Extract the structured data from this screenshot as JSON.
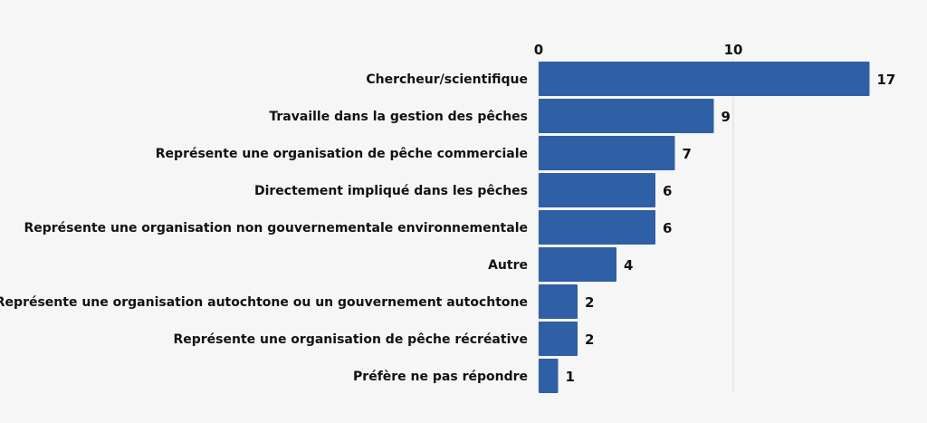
{
  "chart_data": {
    "type": "bar",
    "orientation": "horizontal",
    "categories": [
      "Chercheur/scientifique",
      "Travaille dans la gestion des pêches",
      "Représente une organisation de pêche commerciale",
      "Directement impliqué dans les pêches",
      "Représente une organisation non gouvernementale environnementale",
      "Autre",
      "Représente une organisation autochtone ou un gouvernement autochtone",
      "Représente une organisation de pêche récréative",
      "Préfère ne pas répondre"
    ],
    "values": [
      17,
      9,
      7,
      6,
      6,
      4,
      2,
      2,
      1
    ],
    "xticks": [
      0,
      10
    ],
    "xlim": [
      0,
      17
    ],
    "xaxis_position": "top",
    "grid": true,
    "data_labels": true,
    "bar_color": "#2f5fa5"
  }
}
